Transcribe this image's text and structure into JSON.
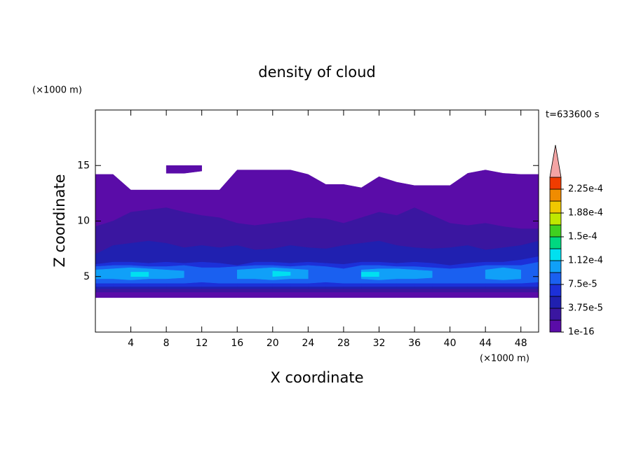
{
  "chart_data": {
    "type": "contour",
    "title": "density of cloud",
    "xlabel": "X coordinate",
    "ylabel": "Z coordinate",
    "xunit": "(×1000 m)",
    "yunit": "(×1000 m)",
    "annotation": "t=633600 s",
    "xlim": [
      0,
      50
    ],
    "ylim": [
      0,
      20
    ],
    "xticks": [
      4,
      8,
      12,
      16,
      20,
      24,
      28,
      32,
      36,
      40,
      44,
      48
    ],
    "yticks": [
      5,
      10,
      15
    ],
    "colorbar": {
      "levels": [
        1e-16,
        1.875e-05,
        3.75e-05,
        5.625e-05,
        7.5e-05,
        9.375e-05,
        0.0001125,
        0.00013125,
        0.00015,
        0.00016875,
        0.0001875,
        0.00020625,
        0.000225,
        0.00024375
      ],
      "colors": [
        "#5a0ca8",
        "#3a16a0",
        "#2020b0",
        "#1c30d8",
        "#1a60f0",
        "#10a0f8",
        "#00e0f0",
        "#00d880",
        "#40d020",
        "#c0e800",
        "#f0c800",
        "#f08c00",
        "#f03c00"
      ],
      "ticks": [
        {
          "value": 1e-16,
          "label": "1e-16"
        },
        {
          "value": 3.75e-05,
          "label": "3.75e-5"
        },
        {
          "value": 7.5e-05,
          "label": "7.5e-5"
        },
        {
          "value": 0.0001125,
          "label": "1.12e-4"
        },
        {
          "value": 0.00015,
          "label": "1.5e-4"
        },
        {
          "value": 0.0001875,
          "label": "1.88e-4"
        },
        {
          "value": 0.000225,
          "label": "2.25e-4"
        }
      ],
      "extend_color": "#f4a4a4"
    },
    "x": [
      0,
      2,
      4,
      6,
      8,
      10,
      12,
      14,
      16,
      18,
      20,
      22,
      24,
      26,
      28,
      30,
      32,
      34,
      36,
      38,
      40,
      42,
      44,
      46,
      48,
      50
    ],
    "layers": [
      {
        "value": 1e-16,
        "z_bottom": [
          3.1,
          3.1,
          3.1,
          3.1,
          3.1,
          3.1,
          3.1,
          3.1,
          3.1,
          3.1,
          3.1,
          3.1,
          3.1,
          3.1,
          3.1,
          3.1,
          3.1,
          3.1,
          3.1,
          3.1,
          3.1,
          3.1,
          3.1,
          3.1,
          3.1,
          3.1
        ],
        "z_top": [
          14.2,
          14.2,
          12.8,
          12.8,
          12.8,
          12.8,
          12.8,
          12.8,
          14.6,
          14.6,
          14.6,
          14.6,
          14.2,
          13.3,
          13.3,
          13.0,
          14.0,
          13.5,
          13.2,
          13.2,
          13.2,
          14.3,
          14.6,
          14.3,
          14.2,
          14.2
        ]
      },
      {
        "value": 1e-16,
        "z_bottom": [
          null,
          null,
          null,
          null,
          14.3,
          14.3,
          14.5,
          null,
          null,
          null,
          null,
          null,
          null,
          null,
          null,
          null,
          null,
          null,
          null,
          null,
          null,
          null,
          null,
          null,
          null,
          null
        ],
        "z_top": [
          null,
          null,
          null,
          null,
          15.0,
          15.0,
          15.0,
          null,
          null,
          null,
          null,
          null,
          null,
          null,
          null,
          null,
          null,
          null,
          null,
          null,
          null,
          null,
          null,
          null,
          null,
          null
        ]
      },
      {
        "value": 1.875e-05,
        "z_bottom": [
          3.6,
          3.6,
          3.6,
          3.6,
          3.6,
          3.6,
          3.6,
          3.6,
          3.6,
          3.6,
          3.6,
          3.6,
          3.6,
          3.6,
          3.6,
          3.6,
          3.6,
          3.6,
          3.6,
          3.6,
          3.6,
          3.6,
          3.6,
          3.6,
          3.6,
          3.6
        ],
        "z_top": [
          9.5,
          10.0,
          10.8,
          11.0,
          11.2,
          10.8,
          10.5,
          10.3,
          9.8,
          9.6,
          9.8,
          10.0,
          10.3,
          10.2,
          9.8,
          10.3,
          10.8,
          10.5,
          11.2,
          10.5,
          9.8,
          9.6,
          9.8,
          9.5,
          9.3,
          9.3
        ]
      },
      {
        "value": 3.75e-05,
        "z_bottom": [
          3.9,
          3.9,
          3.9,
          3.9,
          3.9,
          3.9,
          3.9,
          3.9,
          3.9,
          3.9,
          3.9,
          3.9,
          3.9,
          3.9,
          3.9,
          3.9,
          3.9,
          3.9,
          3.9,
          3.9,
          3.9,
          3.9,
          3.9,
          3.9,
          3.9,
          3.9
        ],
        "z_top": [
          7.0,
          7.8,
          8.0,
          8.2,
          8.0,
          7.6,
          7.8,
          7.6,
          7.8,
          7.4,
          7.5,
          7.8,
          7.6,
          7.5,
          7.8,
          8.0,
          8.2,
          7.8,
          7.6,
          7.5,
          7.6,
          7.8,
          7.4,
          7.6,
          7.8,
          8.2
        ]
      },
      {
        "value": 5.625e-05,
        "z_bottom": [
          4.1,
          4.1,
          4.1,
          4.1,
          4.1,
          4.1,
          4.1,
          4.1,
          4.1,
          4.1,
          4.1,
          4.1,
          4.1,
          4.1,
          4.1,
          4.1,
          4.1,
          4.1,
          4.1,
          4.1,
          4.1,
          4.1,
          4.1,
          4.1,
          4.1,
          4.1
        ],
        "z_top": [
          6.1,
          6.3,
          6.3,
          6.2,
          6.3,
          6.2,
          6.3,
          6.2,
          6.0,
          6.3,
          6.3,
          6.2,
          6.3,
          6.2,
          6.1,
          6.3,
          6.3,
          6.2,
          6.3,
          6.2,
          6.0,
          6.2,
          6.3,
          6.3,
          6.5,
          6.8
        ]
      },
      {
        "value": 7.5e-05,
        "z_bottom": [
          4.4,
          4.4,
          4.4,
          4.4,
          4.4,
          4.4,
          4.5,
          4.4,
          4.4,
          4.4,
          4.4,
          4.4,
          4.4,
          4.5,
          4.4,
          4.4,
          4.4,
          4.4,
          4.4,
          4.4,
          4.4,
          4.4,
          4.4,
          4.4,
          4.4,
          4.5
        ],
        "z_top": [
          5.9,
          6.0,
          6.0,
          5.9,
          5.9,
          6.0,
          5.8,
          5.8,
          5.9,
          6.0,
          6.0,
          5.9,
          6.0,
          5.9,
          5.7,
          6.0,
          6.0,
          5.9,
          5.9,
          5.8,
          5.7,
          5.8,
          6.0,
          6.0,
          6.0,
          6.3
        ]
      },
      {
        "value": 9.375e-05,
        "z_bottom": [
          4.8,
          4.8,
          4.7,
          4.8,
          4.8,
          4.9,
          null,
          null,
          4.8,
          4.8,
          4.7,
          4.8,
          4.8,
          null,
          null,
          4.8,
          4.7,
          4.8,
          4.8,
          4.9,
          null,
          null,
          4.8,
          4.7,
          4.8,
          null
        ],
        "z_top": [
          5.6,
          5.7,
          5.8,
          5.7,
          5.6,
          5.5,
          null,
          null,
          5.6,
          5.7,
          5.8,
          5.7,
          5.6,
          null,
          null,
          5.6,
          5.7,
          5.7,
          5.6,
          5.5,
          null,
          null,
          5.6,
          5.8,
          5.6,
          null
        ]
      },
      {
        "value": 0.0001125,
        "z_bottom": [
          null,
          null,
          5.0,
          5.0,
          null,
          null,
          null,
          null,
          null,
          null,
          5.0,
          5.1,
          null,
          null,
          null,
          5.0,
          5.0,
          null,
          null,
          null,
          null,
          null,
          null,
          null,
          null,
          null
        ],
        "z_top": [
          null,
          null,
          5.4,
          5.4,
          null,
          null,
          null,
          null,
          null,
          null,
          5.5,
          5.4,
          null,
          null,
          null,
          5.4,
          5.4,
          null,
          null,
          null,
          null,
          null,
          null,
          null,
          null,
          null
        ]
      }
    ]
  }
}
